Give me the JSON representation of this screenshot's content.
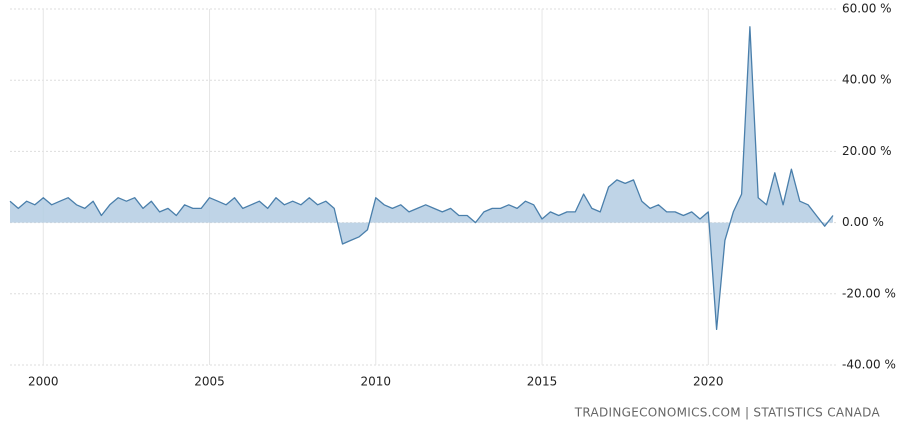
{
  "chart_data": {
    "type": "area",
    "source": "TRADINGECONOMICS.COM | STATISTICS CANADA",
    "x": [
      1999.0,
      1999.25,
      1999.5,
      1999.75,
      2000.0,
      2000.25,
      2000.5,
      2000.75,
      2001.0,
      2001.25,
      2001.5,
      2001.75,
      2002.0,
      2002.25,
      2002.5,
      2002.75,
      2003.0,
      2003.25,
      2003.5,
      2003.75,
      2004.0,
      2004.25,
      2004.5,
      2004.75,
      2005.0,
      2005.25,
      2005.5,
      2005.75,
      2006.0,
      2006.25,
      2006.5,
      2006.75,
      2007.0,
      2007.25,
      2007.5,
      2007.75,
      2008.0,
      2008.25,
      2008.5,
      2008.75,
      2009.0,
      2009.25,
      2009.5,
      2009.75,
      2010.0,
      2010.25,
      2010.5,
      2010.75,
      2011.0,
      2011.25,
      2011.5,
      2011.75,
      2012.0,
      2012.25,
      2012.5,
      2012.75,
      2013.0,
      2013.25,
      2013.5,
      2013.75,
      2014.0,
      2014.25,
      2014.5,
      2014.75,
      2015.0,
      2015.25,
      2015.5,
      2015.75,
      2016.0,
      2016.25,
      2016.5,
      2016.75,
      2017.0,
      2017.25,
      2017.5,
      2017.75,
      2018.0,
      2018.25,
      2018.5,
      2018.75,
      2019.0,
      2019.25,
      2019.5,
      2019.75,
      2020.0,
      2020.25,
      2020.5,
      2020.75,
      2021.0,
      2021.25,
      2021.5,
      2021.75,
      2022.0,
      2022.25,
      2022.5,
      2022.75,
      2023.0,
      2023.25,
      2023.5,
      2023.75
    ],
    "values": [
      6,
      4,
      6,
      5,
      7,
      5,
      6,
      7,
      5,
      4,
      6,
      2,
      5,
      7,
      6,
      7,
      4,
      6,
      3,
      4,
      2,
      5,
      4,
      4,
      7,
      6,
      5,
      7,
      4,
      5,
      6,
      4,
      7,
      5,
      6,
      5,
      7,
      5,
      6,
      4,
      -6,
      -5,
      -4,
      -2,
      7,
      5,
      4,
      5,
      3,
      4,
      5,
      4,
      3,
      4,
      2,
      2,
      0,
      3,
      4,
      4,
      5,
      4,
      6,
      5,
      1,
      3,
      2,
      3,
      3,
      8,
      4,
      3,
      10,
      12,
      11,
      12,
      6,
      4,
      5,
      3,
      3,
      2,
      3,
      1,
      3,
      -30,
      -5,
      3,
      8,
      55,
      7,
      5,
      14,
      5,
      15,
      6,
      5,
      2,
      -1,
      2
    ],
    "color": "#4a7fab",
    "fill": "#b4cce3",
    "xlim": [
      1999.0,
      2023.9
    ],
    "xticks": [
      2000,
      2005,
      2010,
      2015,
      2020
    ],
    "ylim": [
      -40,
      60
    ],
    "yticks": [
      {
        "value": -40,
        "label": "-40.00 %"
      },
      {
        "value": -20,
        "label": "-20.00 %"
      },
      {
        "value": 0,
        "label": "0.00 %"
      },
      {
        "value": 20,
        "label": "20.00 %"
      },
      {
        "value": 40,
        "label": "40.00 %"
      },
      {
        "value": 60,
        "label": "60.00 %"
      }
    ],
    "grid": true
  }
}
